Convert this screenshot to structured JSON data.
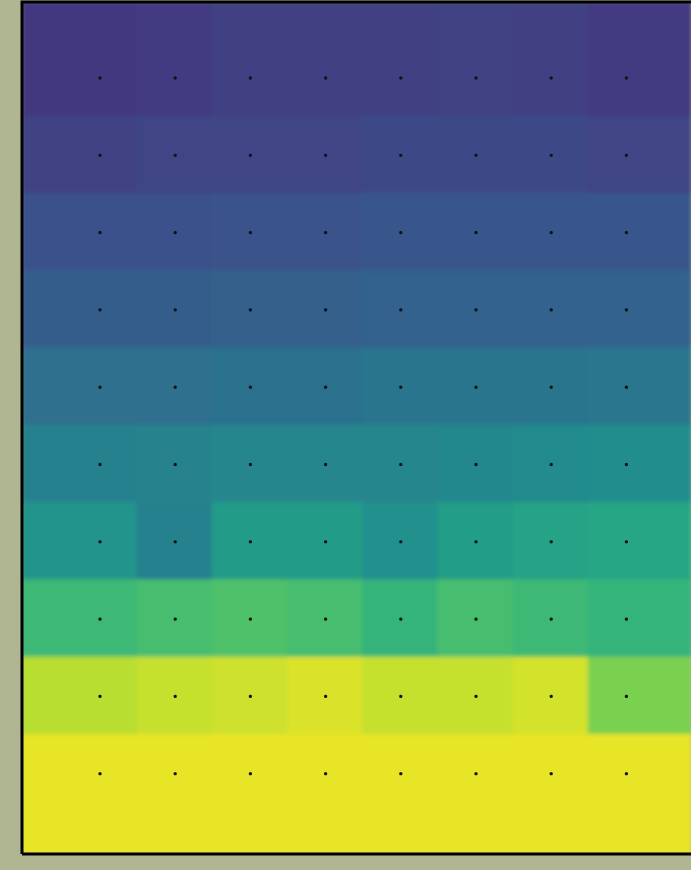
{
  "chart_data": {
    "type": "heatmap",
    "colormap": "viridis",
    "colors": {
      "background": "#b1b692",
      "frame": "#000000",
      "sample_dot": "#111111"
    },
    "grid": false,
    "x_samples": [
      1,
      2,
      3,
      4,
      5,
      6,
      7,
      8
    ],
    "y_samples": [
      1,
      2,
      3,
      4,
      5,
      6,
      7,
      8,
      9,
      10
    ],
    "value_range": [
      0.0,
      1.0
    ],
    "values": [
      [
        0.17,
        0.18,
        0.19,
        0.19,
        0.19,
        0.2,
        0.19,
        0.18
      ],
      [
        0.2,
        0.21,
        0.21,
        0.21,
        0.22,
        0.22,
        0.22,
        0.21
      ],
      [
        0.25,
        0.25,
        0.26,
        0.26,
        0.27,
        0.27,
        0.27,
        0.27
      ],
      [
        0.3,
        0.3,
        0.31,
        0.31,
        0.32,
        0.32,
        0.32,
        0.32
      ],
      [
        0.37,
        0.37,
        0.38,
        0.38,
        0.39,
        0.39,
        0.39,
        0.4
      ],
      [
        0.44,
        0.45,
        0.46,
        0.46,
        0.46,
        0.47,
        0.48,
        0.49
      ],
      [
        0.52,
        0.44,
        0.55,
        0.55,
        0.5,
        0.56,
        0.58,
        0.6
      ],
      [
        0.68,
        0.7,
        0.72,
        0.7,
        0.66,
        0.7,
        0.68,
        0.66
      ],
      [
        0.9,
        0.92,
        0.93,
        0.95,
        0.92,
        0.92,
        0.94,
        0.8
      ],
      [
        0.97,
        0.97,
        0.97,
        0.97,
        0.97,
        0.97,
        0.97,
        0.97
      ]
    ]
  }
}
